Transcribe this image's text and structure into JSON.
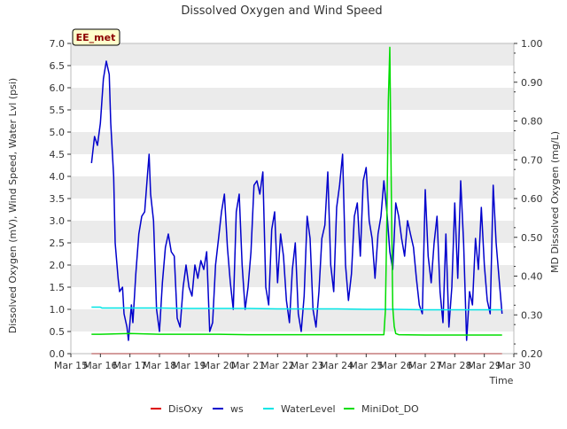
{
  "chart_data": {
    "type": "line",
    "title": "Dissolved Oxygen and Wind Speed",
    "site_badge": "EE_met",
    "xlabel": "Time",
    "ylabel_left": "Dissolved Oxygen (mV), Wind Speed, Water Lvl (psi)",
    "ylabel_right": "MD Dissolved Oxygen (mg/L)",
    "x_range_days": [
      15,
      30
    ],
    "x_tick_values": [
      15,
      16,
      17,
      18,
      19,
      20,
      21,
      22,
      23,
      24,
      25,
      26,
      27,
      28,
      29,
      30
    ],
    "x_tick_labels": [
      "Mar 15",
      "Mar 16",
      "Mar 17",
      "Mar 18",
      "Mar 19",
      "Mar 20",
      "Mar 21",
      "Mar 22",
      "Mar 23",
      "Mar 24",
      "Mar 25",
      "Mar 26",
      "Mar 27",
      "Mar 28",
      "Mar 29",
      "Mar 30"
    ],
    "ylim_left": [
      0,
      7
    ],
    "y_left_ticks": [
      0,
      0.5,
      1,
      1.5,
      2,
      2.5,
      3,
      3.5,
      4,
      4.5,
      5,
      5.5,
      6,
      6.5,
      7
    ],
    "y_left_tick_labels": [
      "0.0",
      "0.5",
      "1.0",
      "1.5",
      "2.0",
      "2.5",
      "3.0",
      "3.5",
      "4.0",
      "4.5",
      "5.0",
      "5.5",
      "6.0",
      "6.5",
      "7.0"
    ],
    "ylim_right": [
      0.2,
      1.0
    ],
    "y_right_ticks": [
      0.2,
      0.3,
      0.4,
      0.5,
      0.6,
      0.7,
      0.8,
      0.9,
      1.0
    ],
    "y_right_tick_labels": [
      "0.20",
      "0.30",
      "0.40",
      "0.50",
      "0.60",
      "0.70",
      "0.80",
      "0.90",
      "1.00"
    ],
    "grid": "horizontal bands",
    "legend_position": "bottom",
    "series": [
      {
        "name": "DisOxy",
        "color": "#dd0000",
        "axis": "left",
        "x": [
          15.7,
          29.6
        ],
        "y": [
          0.0,
          0.0
        ]
      },
      {
        "name": "ws",
        "color": "#0000cc",
        "axis": "left",
        "x": [
          15.7,
          15.8,
          15.9,
          16.0,
          16.1,
          16.2,
          16.3,
          16.35,
          16.45,
          16.5,
          16.6,
          16.65,
          16.75,
          16.8,
          16.9,
          16.95,
          17.05,
          17.1,
          17.2,
          17.3,
          17.4,
          17.5,
          17.6,
          17.65,
          17.7,
          17.8,
          17.9,
          18.0,
          18.1,
          18.2,
          18.3,
          18.4,
          18.5,
          18.6,
          18.7,
          18.8,
          18.9,
          19.0,
          19.1,
          19.2,
          19.3,
          19.4,
          19.5,
          19.6,
          19.7,
          19.8,
          19.9,
          20.0,
          20.1,
          20.2,
          20.3,
          20.4,
          20.5,
          20.6,
          20.7,
          20.8,
          20.9,
          21.0,
          21.1,
          21.2,
          21.3,
          21.4,
          21.5,
          21.6,
          21.7,
          21.8,
          21.9,
          22.0,
          22.1,
          22.2,
          22.3,
          22.4,
          22.5,
          22.6,
          22.7,
          22.8,
          22.9,
          23.0,
          23.1,
          23.2,
          23.3,
          23.4,
          23.5,
          23.6,
          23.7,
          23.8,
          23.9,
          24.0,
          24.1,
          24.2,
          24.3,
          24.4,
          24.5,
          24.6,
          24.7,
          24.8,
          24.9,
          25.0,
          25.1,
          25.2,
          25.3,
          25.4,
          25.5,
          25.6,
          25.7,
          25.8,
          25.9,
          26.0,
          26.1,
          26.2,
          26.3,
          26.4,
          26.5,
          26.6,
          26.7,
          26.8,
          26.9,
          27.0,
          27.1,
          27.2,
          27.3,
          27.4,
          27.5,
          27.6,
          27.7,
          27.8,
          27.9,
          28.0,
          28.1,
          28.2,
          28.3,
          28.4,
          28.5,
          28.6,
          28.7,
          28.8,
          28.9,
          29.0,
          29.1,
          29.2,
          29.3,
          29.4,
          29.5,
          29.6
        ],
        "y": [
          4.3,
          4.9,
          4.7,
          5.2,
          6.2,
          6.6,
          6.3,
          5.2,
          4.0,
          2.5,
          1.7,
          1.4,
          1.5,
          0.9,
          0.6,
          0.3,
          1.1,
          0.7,
          1.8,
          2.7,
          3.1,
          3.2,
          4.1,
          4.5,
          3.6,
          3.0,
          1.0,
          0.5,
          1.6,
          2.4,
          2.7,
          2.3,
          2.2,
          0.8,
          0.6,
          1.5,
          2.0,
          1.5,
          1.3,
          2.0,
          1.7,
          2.1,
          1.9,
          2.3,
          0.5,
          0.7,
          2.0,
          2.6,
          3.2,
          3.6,
          2.4,
          1.6,
          1.0,
          3.2,
          3.6,
          2.0,
          1.0,
          1.5,
          2.3,
          3.8,
          3.9,
          3.6,
          4.1,
          1.5,
          1.1,
          2.8,
          3.2,
          1.6,
          2.7,
          2.2,
          1.2,
          0.7,
          1.9,
          2.5,
          0.9,
          0.5,
          1.3,
          3.1,
          2.6,
          1.0,
          0.6,
          1.4,
          2.6,
          2.9,
          4.1,
          2.0,
          1.4,
          3.3,
          3.8,
          4.5,
          2.0,
          1.2,
          1.8,
          3.1,
          3.4,
          2.2,
          3.9,
          4.2,
          3.0,
          2.6,
          1.7,
          2.7,
          3.1,
          3.9,
          3.2,
          2.3,
          1.9,
          3.4,
          3.1,
          2.6,
          2.2,
          3.0,
          2.7,
          2.4,
          1.7,
          1.1,
          0.9,
          3.7,
          2.2,
          1.6,
          2.5,
          3.1,
          1.4,
          0.7,
          2.7,
          0.6,
          1.5,
          3.4,
          1.7,
          3.9,
          2.5,
          0.3,
          1.4,
          1.1,
          2.6,
          1.9,
          3.3,
          2.0,
          1.2,
          0.9,
          3.8,
          2.5,
          1.7,
          0.9
        ],
        "note_dips": []
      },
      {
        "name": "WaterLevel",
        "color": "#00e5e5",
        "axis": "left",
        "x": [
          15.7,
          16.0,
          16.05,
          17.0,
          18.0,
          19.0,
          20.0,
          21.0,
          22.0,
          23.0,
          24.0,
          25.0,
          26.0,
          27.0,
          28.0,
          29.0,
          29.6
        ],
        "y": [
          1.05,
          1.05,
          1.03,
          1.03,
          1.03,
          1.02,
          1.02,
          1.02,
          1.01,
          1.01,
          1.01,
          1.0,
          1.0,
          0.99,
          0.99,
          0.99,
          0.99
        ]
      },
      {
        "name": "MiniDot_DO",
        "color": "#00dd00",
        "axis": "right",
        "x": [
          15.7,
          16.0,
          17.0,
          18.0,
          19.0,
          20.0,
          21.0,
          22.0,
          23.0,
          24.0,
          25.0,
          25.6,
          25.65,
          25.7,
          25.75,
          25.8,
          25.85,
          25.9,
          25.95,
          26.0,
          26.1,
          27.0,
          28.0,
          29.0,
          29.6
        ],
        "y": [
          0.25,
          0.25,
          0.252,
          0.25,
          0.25,
          0.25,
          0.249,
          0.249,
          0.249,
          0.249,
          0.249,
          0.249,
          0.31,
          0.55,
          0.85,
          0.99,
          0.62,
          0.32,
          0.27,
          0.252,
          0.249,
          0.248,
          0.248,
          0.248,
          0.248
        ]
      }
    ]
  }
}
